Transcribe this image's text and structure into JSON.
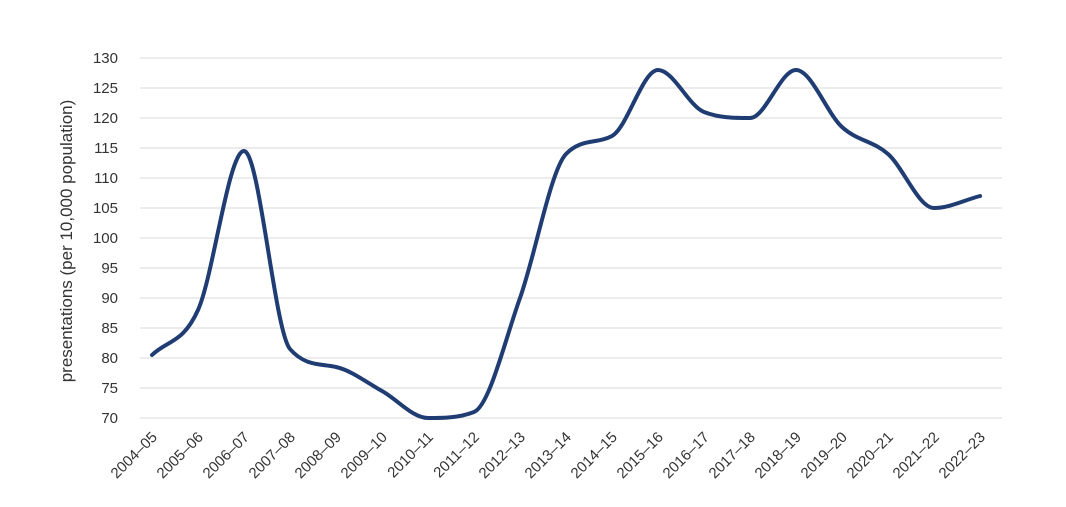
{
  "chart_data": {
    "type": "line",
    "title": "",
    "xlabel": "",
    "ylabel": "presentations (per 10,000 population)",
    "categories": [
      "2004–05",
      "2005–06",
      "2006–07",
      "2007–08",
      "2008–09",
      "2009–10",
      "2010–11",
      "2011–12",
      "2012–13",
      "2013–14",
      "2014–15",
      "2015–16",
      "2016–17",
      "2017–18",
      "2018–19",
      "2019–20",
      "2020–21",
      "2021–22",
      "2022–23"
    ],
    "series": [
      {
        "values": [
          80.5,
          88,
          114.5,
          81.5,
          78.5,
          74.5,
          70,
          71,
          90,
          114,
          117,
          128,
          121,
          120,
          128,
          118.5,
          114,
          105,
          107
        ],
        "color": "#1f3c73"
      }
    ],
    "ylim": [
      69,
      130
    ],
    "yticks": [
      70,
      75,
      80,
      85,
      90,
      95,
      100,
      105,
      110,
      115,
      120,
      125,
      130
    ],
    "grid": true,
    "legend": "none"
  }
}
